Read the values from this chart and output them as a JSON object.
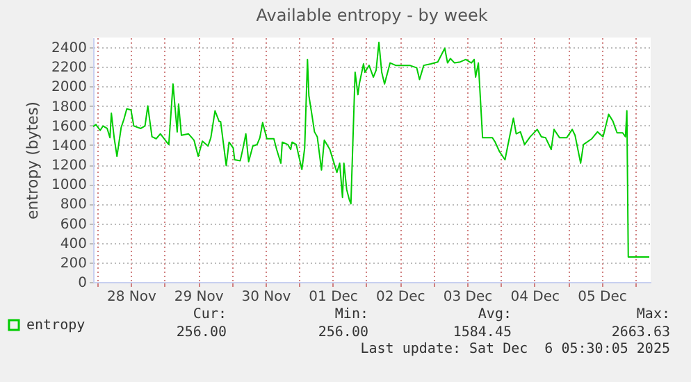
{
  "chart_data": {
    "type": "line",
    "title": "Available entropy - by week",
    "ylabel": "entropy (bytes)",
    "x": [
      "2025-11-27T22:30",
      "2025-11-27T23:30",
      "2025-11-28T01:00",
      "2025-11-28T02:00",
      "2025-11-28T03:30",
      "2025-11-28T04:30",
      "2025-11-28T05:00",
      "2025-11-28T06:00",
      "2025-11-28T07:00",
      "2025-11-28T08:30",
      "2025-11-28T09:30",
      "2025-11-28T10:30",
      "2025-11-28T12:00",
      "2025-11-28T13:00",
      "2025-11-28T15:30",
      "2025-11-28T17:00",
      "2025-11-28T18:00",
      "2025-11-28T19:30",
      "2025-11-28T21:00",
      "2025-11-28T22:30",
      "2025-11-29T00:30",
      "2025-11-29T01:30",
      "2025-11-29T03:00",
      "2025-11-29T04:30",
      "2025-11-29T05:00",
      "2025-11-29T06:00",
      "2025-11-29T08:30",
      "2025-11-29T10:30",
      "2025-11-29T12:00",
      "2025-11-29T13:30",
      "2025-11-29T15:30",
      "2025-11-29T16:30",
      "2025-11-29T18:00",
      "2025-11-29T19:30",
      "2025-11-29T20:00",
      "2025-11-29T22:00",
      "2025-11-29T23:00",
      "2025-11-30T00:30",
      "2025-11-30T01:00",
      "2025-11-30T03:00",
      "2025-11-30T04:00",
      "2025-11-30T05:00",
      "2025-11-30T06:00",
      "2025-11-30T07:30",
      "2025-11-30T09:00",
      "2025-11-30T10:00",
      "2025-11-30T11:00",
      "2025-11-30T12:30",
      "2025-11-30T15:00",
      "2025-11-30T16:00",
      "2025-11-30T17:30",
      "2025-11-30T18:00",
      "2025-11-30T20:00",
      "2025-11-30T21:00",
      "2025-11-30T21:30",
      "2025-11-30T23:00",
      "2025-12-01T01:00",
      "2025-12-01T02:00",
      "2025-12-01T03:00",
      "2025-12-01T03:30",
      "2025-12-01T04:30",
      "2025-12-01T05:30",
      "2025-12-01T06:30",
      "2025-12-01T08:00",
      "2025-12-01T09:00",
      "2025-12-01T11:00",
      "2025-12-01T12:00",
      "2025-12-01T13:30",
      "2025-12-01T14:30",
      "2025-12-01T15:30",
      "2025-12-01T16:00",
      "2025-12-01T17:00",
      "2025-12-01T18:00",
      "2025-12-01T18:30",
      "2025-12-01T20:00",
      "2025-12-01T21:00",
      "2025-12-01T21:30",
      "2025-12-01T23:00",
      "2025-12-01T23:30",
      "2025-12-02T01:00",
      "2025-12-02T02:30",
      "2025-12-02T03:30",
      "2025-12-02T04:30",
      "2025-12-02T05:30",
      "2025-12-02T06:30",
      "2025-12-02T08:30",
      "2025-12-02T10:30",
      "2025-12-02T15:30",
      "2025-12-02T18:00",
      "2025-12-02T19:00",
      "2025-12-02T20:30",
      "2025-12-02T23:00",
      "2025-12-03T01:30",
      "2025-12-03T04:00",
      "2025-12-03T05:00",
      "2025-12-03T06:00",
      "2025-12-03T07:30",
      "2025-12-03T09:30",
      "2025-12-03T11:30",
      "2025-12-03T13:30",
      "2025-12-03T14:30",
      "2025-12-03T15:00",
      "2025-12-03T16:00",
      "2025-12-03T17:30",
      "2025-12-03T21:00",
      "2025-12-03T22:00",
      "2025-12-03T23:30",
      "2025-12-04T01:30",
      "2025-12-04T03:00",
      "2025-12-04T04:30",
      "2025-12-04T05:30",
      "2025-12-04T07:00",
      "2025-12-04T08:30",
      "2025-12-04T10:30",
      "2025-12-04T13:00",
      "2025-12-04T14:30",
      "2025-12-04T16:00",
      "2025-12-04T18:00",
      "2025-12-04T19:00",
      "2025-12-04T21:00",
      "2025-12-04T23:30",
      "2025-12-05T01:30",
      "2025-12-05T02:30",
      "2025-12-05T04:30",
      "2025-12-05T05:30",
      "2025-12-05T08:30",
      "2025-12-05T10:30",
      "2025-12-05T12:30",
      "2025-12-05T14:30",
      "2025-12-05T16:00",
      "2025-12-05T17:30",
      "2025-12-05T19:30",
      "2025-12-05T20:30",
      "2025-12-05T21:00",
      "2025-12-05T21:30",
      "2025-12-06T05:00"
    ],
    "series": [
      {
        "name": "entropy",
        "color": "#00cc00",
        "values": [
          1590,
          1610,
          1550,
          1595,
          1570,
          1475,
          1725,
          1475,
          1285,
          1580,
          1665,
          1770,
          1760,
          1595,
          1570,
          1595,
          1800,
          1485,
          1465,
          1515,
          1440,
          1405,
          2025,
          1535,
          1820,
          1500,
          1515,
          1450,
          1285,
          1440,
          1390,
          1475,
          1750,
          1640,
          1640,
          1190,
          1430,
          1370,
          1250,
          1240,
          1370,
          1515,
          1230,
          1390,
          1405,
          1475,
          1630,
          1465,
          1465,
          1355,
          1215,
          1430,
          1405,
          1355,
          1430,
          1405,
          1150,
          1370,
          2275,
          1905,
          1725,
          1535,
          1485,
          1145,
          1450,
          1355,
          1260,
          1120,
          1215,
          865,
          1215,
          945,
          835,
          800,
          2145,
          1915,
          2025,
          2230,
          2145,
          2215,
          2095,
          2165,
          2450,
          2145,
          2025,
          2240,
          2215,
          2215,
          2190,
          2070,
          2215,
          2230,
          2250,
          2390,
          2240,
          2285,
          2240,
          2250,
          2275,
          2240,
          2275,
          2095,
          2240,
          1475,
          1475,
          1430,
          1335,
          1250,
          1465,
          1675,
          1515,
          1535,
          1405,
          1485,
          1560,
          1485,
          1475,
          1355,
          1560,
          1475,
          1475,
          1560,
          1500,
          1215,
          1405,
          1465,
          1535,
          1485,
          1715,
          1645,
          1525,
          1525,
          1485,
          1750,
          256,
          256
        ]
      }
    ],
    "xlim": [
      "2025-11-27T22:30",
      "2025-12-06T05:30"
    ],
    "xticks": [
      {
        "value": "2025-11-28T00:00",
        "label": null
      },
      {
        "value": "2025-11-28T12:00",
        "label": "28 Nov"
      },
      {
        "value": "2025-11-29T00:00",
        "label": null
      },
      {
        "value": "2025-11-29T12:00",
        "label": "29 Nov"
      },
      {
        "value": "2025-11-30T00:00",
        "label": null
      },
      {
        "value": "2025-11-30T12:00",
        "label": "30 Nov"
      },
      {
        "value": "2025-12-01T00:00",
        "label": null
      },
      {
        "value": "2025-12-01T12:00",
        "label": "01 Dec"
      },
      {
        "value": "2025-12-02T00:00",
        "label": null
      },
      {
        "value": "2025-12-02T12:00",
        "label": "02 Dec"
      },
      {
        "value": "2025-12-03T00:00",
        "label": null
      },
      {
        "value": "2025-12-03T12:00",
        "label": "03 Dec"
      },
      {
        "value": "2025-12-04T00:00",
        "label": null
      },
      {
        "value": "2025-12-04T12:00",
        "label": "04 Dec"
      },
      {
        "value": "2025-12-05T00:00",
        "label": null
      },
      {
        "value": "2025-12-05T12:00",
        "label": "05 Dec"
      },
      {
        "value": "2025-12-06T00:00",
        "label": null
      }
    ],
    "ylim": [
      0,
      2500
    ],
    "yticks": [
      0,
      200,
      400,
      600,
      800,
      1000,
      1200,
      1400,
      1600,
      1800,
      2000,
      2200,
      2400
    ],
    "grid": true,
    "legend": "bottom left",
    "marker": "none",
    "line_style": "solid",
    "annotations": [
      "Cur:",
      "256.00",
      "Min:",
      "256.00",
      "Avg:",
      "1584.45",
      "Max:",
      "2663.63",
      "Last update: Sat Dec  6 05:30:05 2025"
    ]
  }
}
